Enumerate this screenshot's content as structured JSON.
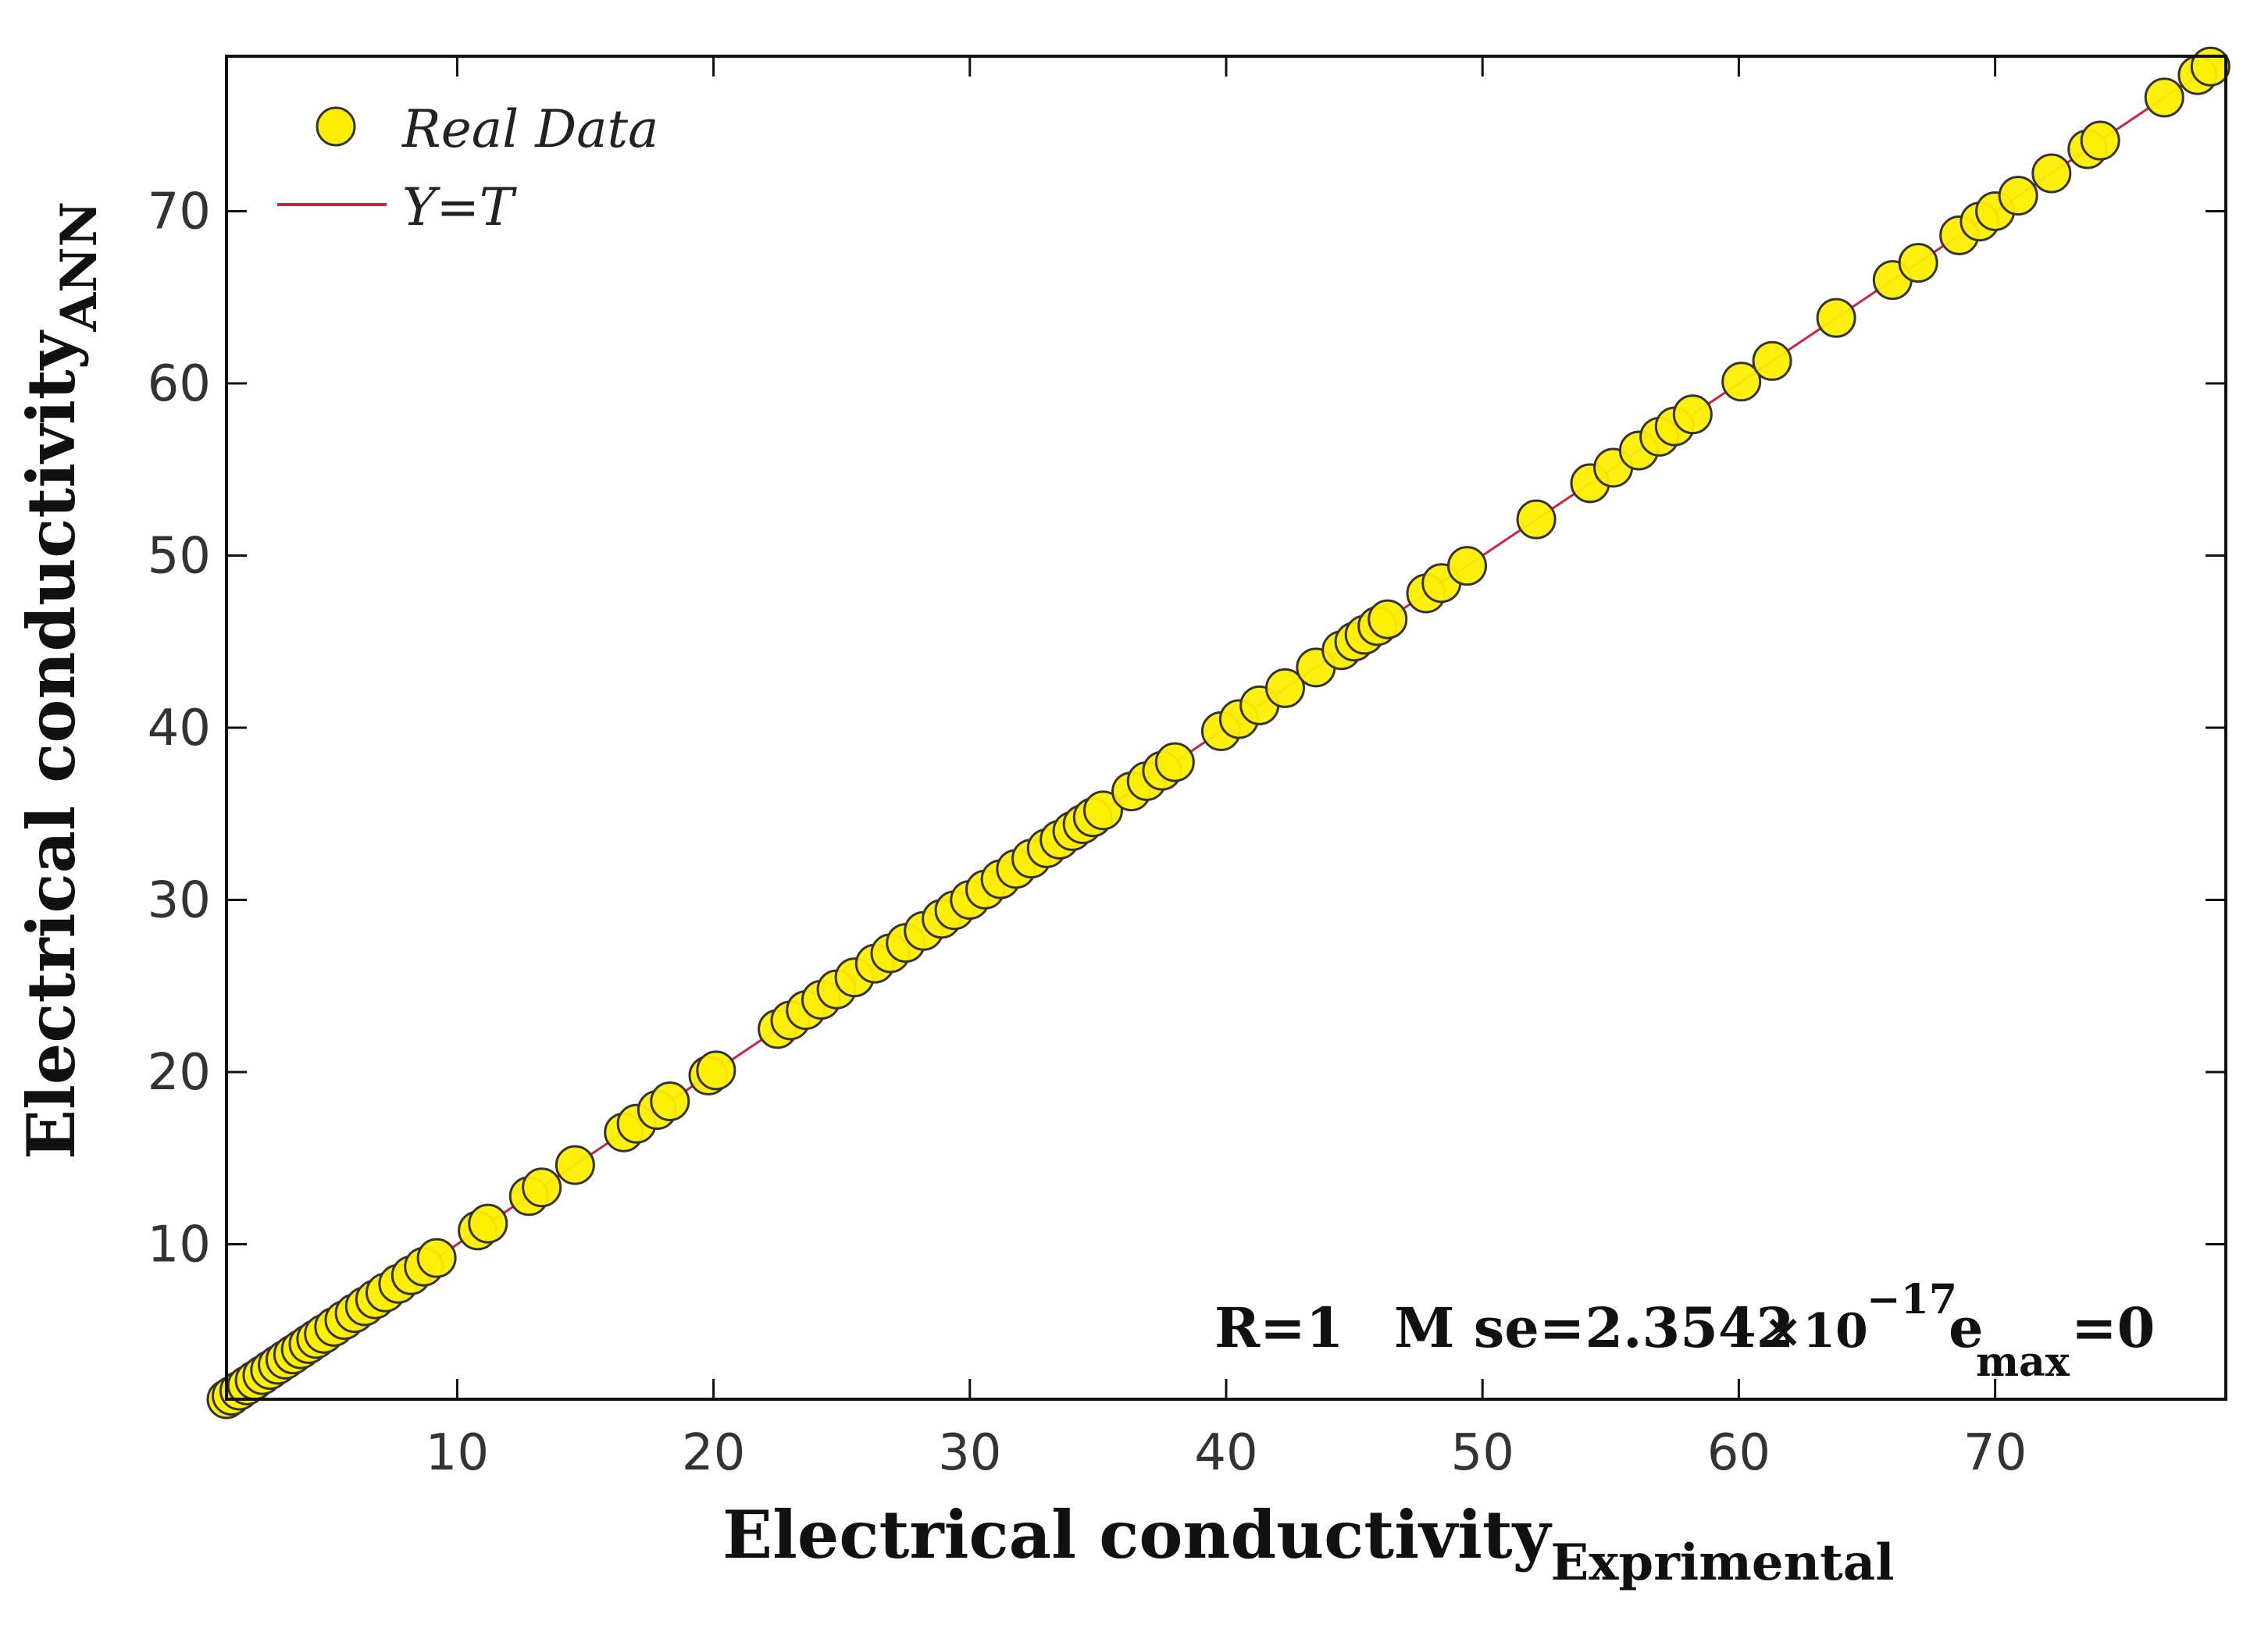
{
  "chart_data": {
    "type": "scatter",
    "xlabel": "Electrical conductivity",
    "xlabel_subscript": "Exprimental",
    "ylabel": "Electrical conductivity",
    "ylabel_subscript": "ANN",
    "xlim": [
      1,
      79
    ],
    "ylim": [
      1,
      79
    ],
    "xticks": [
      10,
      20,
      30,
      40,
      50,
      60,
      70
    ],
    "yticks": [
      10,
      20,
      30,
      40,
      50,
      60,
      70
    ],
    "legend": {
      "position": "top-left",
      "entries": [
        {
          "label": "Real Data",
          "type": "marker",
          "color": "#FFEE00"
        },
        {
          "label": "Y=T",
          "type": "line",
          "color": "#CC2244"
        }
      ]
    },
    "fit_line": {
      "name": "Y=T",
      "x": [
        1,
        79
      ],
      "y": [
        1,
        79
      ],
      "color": "#CC2244"
    },
    "series": [
      {
        "name": "Real Data",
        "color": "#FFEE00",
        "edge_color": "#333333",
        "x": [
          1.0,
          1.2,
          1.5,
          1.8,
          2.1,
          2.4,
          2.7,
          3.0,
          3.3,
          3.6,
          3.9,
          4.2,
          4.5,
          4.8,
          5.2,
          5.6,
          6.0,
          6.4,
          6.8,
          7.2,
          7.7,
          8.2,
          8.7,
          9.2,
          10.8,
          11.2,
          12.8,
          13.3,
          14.6,
          16.5,
          17.0,
          17.8,
          18.3,
          19.8,
          20.1,
          22.5,
          23.0,
          23.6,
          24.2,
          24.8,
          25.5,
          26.3,
          26.9,
          27.5,
          28.2,
          28.9,
          29.4,
          30.0,
          30.6,
          31.2,
          31.8,
          32.4,
          33.0,
          33.5,
          34.0,
          34.4,
          34.8,
          35.2,
          36.3,
          36.9,
          37.5,
          38.0,
          39.8,
          40.5,
          41.3,
          42.3,
          43.5,
          44.5,
          45.0,
          45.4,
          45.9,
          46.3,
          47.8,
          48.4,
          49.4,
          52.1,
          54.2,
          55.1,
          56.1,
          56.9,
          57.5,
          58.2,
          60.1,
          61.3,
          63.8,
          66.0,
          67.0,
          68.6,
          69.4,
          70.0,
          70.9,
          72.2,
          73.6,
          74.1,
          76.6,
          77.9,
          78.4
        ],
        "y": [
          1.0,
          1.2,
          1.5,
          1.8,
          2.1,
          2.4,
          2.7,
          3.0,
          3.3,
          3.6,
          3.9,
          4.2,
          4.5,
          4.8,
          5.2,
          5.6,
          6.0,
          6.4,
          6.8,
          7.2,
          7.7,
          8.2,
          8.7,
          9.2,
          10.8,
          11.2,
          12.8,
          13.3,
          14.6,
          16.5,
          17.0,
          17.8,
          18.3,
          19.8,
          20.1,
          22.5,
          23.0,
          23.6,
          24.2,
          24.8,
          25.5,
          26.3,
          26.9,
          27.5,
          28.2,
          28.9,
          29.4,
          30.0,
          30.6,
          31.2,
          31.8,
          32.4,
          33.0,
          33.5,
          34.0,
          34.4,
          34.8,
          35.2,
          36.3,
          36.9,
          37.5,
          38.0,
          39.8,
          40.5,
          41.3,
          42.3,
          43.5,
          44.5,
          45.0,
          45.4,
          45.9,
          46.3,
          47.8,
          48.4,
          49.4,
          52.1,
          54.2,
          55.1,
          56.1,
          56.9,
          57.5,
          58.2,
          60.1,
          61.3,
          63.8,
          66.0,
          67.0,
          68.6,
          69.4,
          70.0,
          70.9,
          72.2,
          73.6,
          74.1,
          76.6,
          77.9,
          78.4
        ]
      }
    ],
    "annotation": {
      "position": "bottom-right",
      "r_text": "R=1",
      "mse_label": "M se=2.3542",
      "mse_times": "×10",
      "mse_exp": "−17",
      "emax_label": "e",
      "emax_sub": "max",
      "emax_value": "=0"
    }
  }
}
